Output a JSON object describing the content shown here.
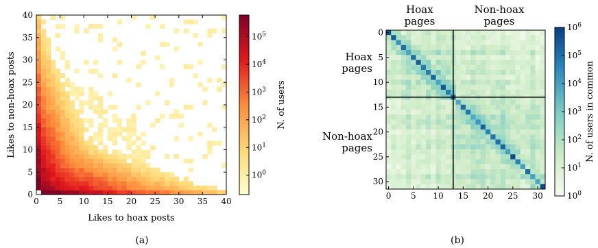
{
  "panel_labels": [
    "(a)",
    "(b)"
  ],
  "chart_data": [
    {
      "type": "heatmap",
      "xlabel": "Likes to hoax posts",
      "ylabel": "Likes to non-hoax posts",
      "xlim": [
        0,
        40
      ],
      "ylim": [
        0,
        40
      ],
      "x_ticks": [
        "0",
        "5",
        "10",
        "15",
        "20",
        "25",
        "30",
        "35",
        "40"
      ],
      "y_ticks": [
        "0",
        "5",
        "10",
        "15",
        "20",
        "25",
        "30",
        "35",
        "40"
      ],
      "colorbar": {
        "label": "N. of users",
        "scale": "log",
        "range": [
          0.2,
          600000
        ],
        "ticks": [
          "10^0",
          "10^1",
          "10^2",
          "10^3",
          "10^4",
          "10^5"
        ],
        "colormap": [
          "#ffffcc",
          "#fed976",
          "#fd8d3c",
          "#e31a1c",
          "#800026"
        ]
      },
      "grid": false,
      "description_of_values": "log10 count of users for each (hoax likes, non-hoax likes) pair; highest near origin, decaying outward, sparse cells beyond ~20"
    },
    {
      "type": "heatmap",
      "x_ticks": [
        "0",
        "5",
        "10",
        "15",
        "20",
        "25",
        "30"
      ],
      "y_ticks": [
        "0",
        "5",
        "10",
        "15",
        "20",
        "25",
        "30"
      ],
      "n_pages": 32,
      "split_index": 14,
      "groups": {
        "top": [
          {
            "label_line1": "Hoax",
            "label_line2": "pages"
          },
          {
            "label_line1": "Non-hoax",
            "label_line2": "pages"
          }
        ],
        "left": [
          {
            "label_line1": "Hoax",
            "label_line2": "pages"
          },
          {
            "label_line1": "Non-hoax",
            "label_line2": "pages"
          }
        ]
      },
      "colorbar": {
        "label": "N. of users in common",
        "scale": "log",
        "range": [
          1,
          1000000
        ],
        "ticks": [
          "10^0",
          "10^1",
          "10^2",
          "10^3",
          "10^4",
          "10^5",
          "10^6"
        ],
        "colormap": [
          "#f7fcf0",
          "#ccebc5",
          "#7bccc4",
          "#2b8cbe",
          "#084081"
        ]
      },
      "grid": false
    }
  ]
}
